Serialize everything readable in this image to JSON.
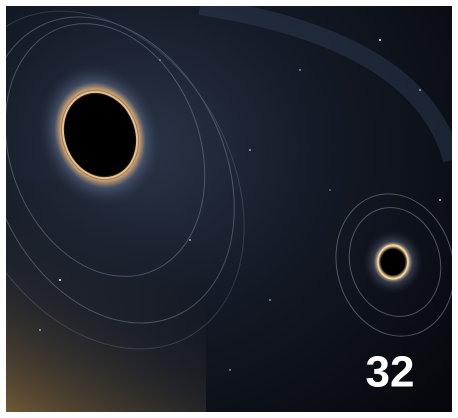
{
  "label": "32"
}
